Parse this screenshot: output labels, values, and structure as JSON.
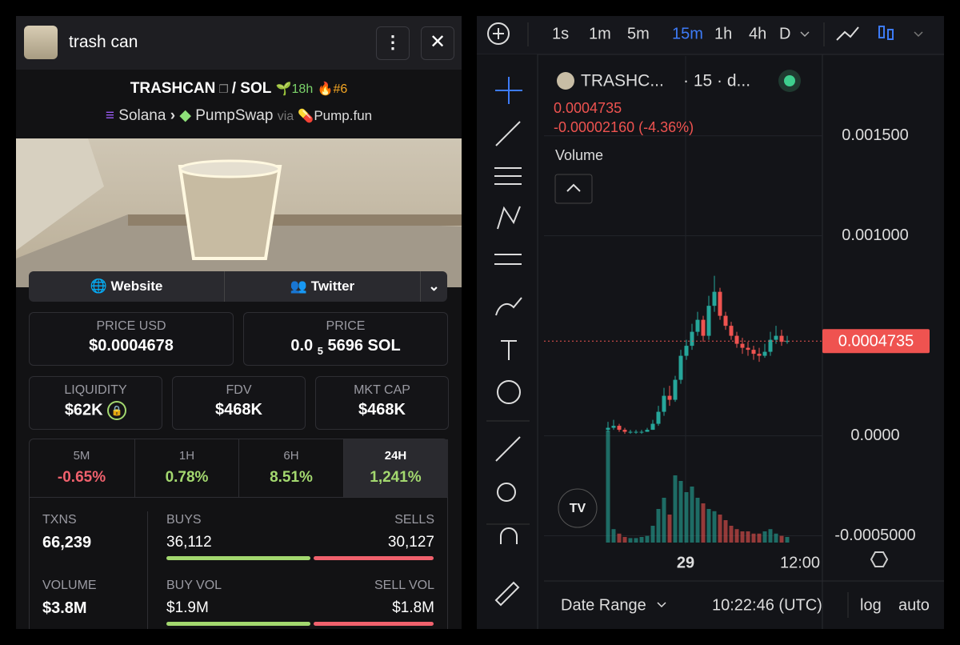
{
  "header": {
    "title": "trash can"
  },
  "pair": {
    "base": "TRASHCAN",
    "sep": "/",
    "quote": "SOL",
    "age": "18h",
    "rank": "#6"
  },
  "route": {
    "chain": "Solana",
    "dex": "PumpSwap",
    "via": "via",
    "launchpad": "Pump.fun"
  },
  "links": {
    "website": "Website",
    "twitter": "Twitter"
  },
  "prices": {
    "usd_label": "PRICE USD",
    "usd": "$0.0004678",
    "sol_label": "PRICE",
    "sol_lead": "0.0",
    "sol_zeros": "5",
    "sol_rest": "5696 SOL"
  },
  "stats": [
    {
      "label": "LIQUIDITY",
      "value": "$62K"
    },
    {
      "label": "FDV",
      "value": "$468K"
    },
    {
      "label": "MKT CAP",
      "value": "$468K"
    }
  ],
  "changes": [
    {
      "period": "5M",
      "value": "-0.65%"
    },
    {
      "period": "1H",
      "value": "0.78%"
    },
    {
      "period": "6H",
      "value": "8.51%"
    },
    {
      "period": "24H",
      "value": "1,241%"
    }
  ],
  "txns": {
    "txns_label": "TXNS",
    "txns": "66,239",
    "buys_label": "BUYS",
    "buys": "36,112",
    "sells_label": "SELLS",
    "sells": "30,127",
    "volume_label": "VOLUME",
    "volume": "$3.8M",
    "buy_vol_label": "BUY VOL",
    "buy_vol": "$1.9M",
    "sell_vol_label": "SELL VOL",
    "sell_vol": "$1.8M"
  },
  "chart": {
    "intervals": [
      "1s",
      "1m",
      "5m",
      "15m",
      "1h",
      "4h",
      "D"
    ],
    "active_interval": 3,
    "symbol": "TRASHC...",
    "meta": "· 15 · d...",
    "change": "-0.00002160 (-4.36%)",
    "volume_label": "Volume",
    "ylim": [
      -0.000726,
      0.001907
    ],
    "yticks": [
      {
        "value": -0.0005,
        "label": "-0.0005000"
      },
      {
        "value": 0,
        "label": "0.0000"
      },
      {
        "value": 0.001,
        "label": "0.001000"
      },
      {
        "value": 0.0015,
        "label": "0.001500"
      }
    ],
    "price_line": {
      "value": 0.0004735,
      "label": "0.0004735"
    },
    "xlabels": [
      "29",
      "12:00"
    ],
    "candles": {
      "open": [
        3e-05,
        4e-05,
        5e-05,
        3e-05,
        2e-05,
        2e-05,
        2e-05,
        2e-05,
        3e-05,
        6e-05,
        0.00012,
        0.0002,
        0.00018,
        0.00028,
        0.0004,
        0.00045,
        0.00052,
        0.00058,
        0.0005,
        0.00065,
        0.00072,
        0.0006,
        0.00055,
        0.0005,
        0.00046,
        0.00044,
        0.00043,
        0.00041,
        0.0004,
        0.00042,
        0.00048,
        0.0005,
        0.00047
      ],
      "high": [
        7e-05,
        8e-05,
        6e-05,
        4e-05,
        3e-05,
        3e-05,
        3e-05,
        4e-05,
        8e-05,
        0.00015,
        0.00024,
        0.00025,
        0.0003,
        0.00043,
        0.00048,
        0.00056,
        0.00062,
        0.0006,
        0.0007,
        0.0008,
        0.00074,
        0.00062,
        0.00057,
        0.00052,
        0.00049,
        0.00047,
        0.00045,
        0.00044,
        0.00046,
        0.00052,
        0.00055,
        0.00053,
        0.0005
      ],
      "low": [
        2e-05,
        3e-05,
        2e-05,
        1e-05,
        1e-05,
        1e-05,
        1e-05,
        2e-05,
        3e-05,
        5e-05,
        0.0001,
        0.00015,
        0.00017,
        0.00026,
        0.00038,
        0.00043,
        0.0005,
        0.00047,
        0.00048,
        0.00062,
        0.00058,
        0.00053,
        0.00048,
        0.00044,
        0.00041,
        0.0004,
        0.00038,
        0.00037,
        0.00039,
        0.0004,
        0.00046,
        0.00045,
        0.00046
      ],
      "close": [
        4e-05,
        5e-05,
        3e-05,
        2e-05,
        2e-05,
        2e-05,
        2e-05,
        3e-05,
        6e-05,
        0.00012,
        0.0002,
        0.00018,
        0.00028,
        0.0004,
        0.00045,
        0.00052,
        0.00058,
        0.0005,
        0.00065,
        0.00072,
        0.0006,
        0.00055,
        0.0005,
        0.00046,
        0.00044,
        0.00043,
        0.00041,
        0.0004,
        0.00042,
        0.00048,
        0.0005,
        0.00047,
        0.0004735
      ],
      "volume": [
        100,
        12,
        8,
        5,
        4,
        4,
        5,
        6,
        15,
        30,
        40,
        25,
        60,
        55,
        45,
        50,
        40,
        35,
        30,
        28,
        25,
        20,
        15,
        12,
        10,
        10,
        8,
        8,
        10,
        12,
        8,
        6,
        5
      ]
    },
    "footer": {
      "range": "Date Range",
      "time": "10:22:46 (UTC)",
      "log": "log",
      "auto": "auto"
    }
  }
}
